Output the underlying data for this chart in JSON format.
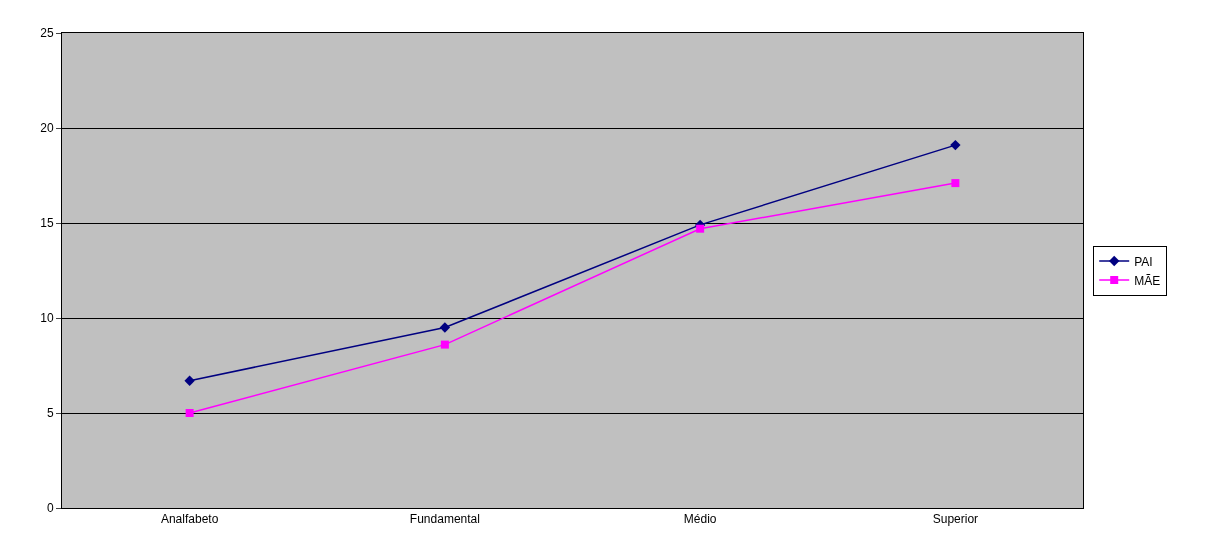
{
  "chart_data": {
    "type": "line",
    "categories": [
      "Analfabeto",
      "Fundamental",
      "Médio",
      "Superior"
    ],
    "series": [
      {
        "name": "PAI",
        "color": "#000080",
        "marker": "diamond",
        "values": [
          6.7,
          9.5,
          14.9,
          19.1
        ]
      },
      {
        "name": "MÃE",
        "color": "#ff00ff",
        "marker": "square",
        "values": [
          5.0,
          8.6,
          14.7,
          17.1
        ]
      }
    ],
    "ylim": [
      0,
      25
    ],
    "yticks": [
      0,
      5,
      10,
      15,
      20,
      25
    ],
    "grid": "y",
    "legend": "right",
    "line_style": "solid"
  }
}
